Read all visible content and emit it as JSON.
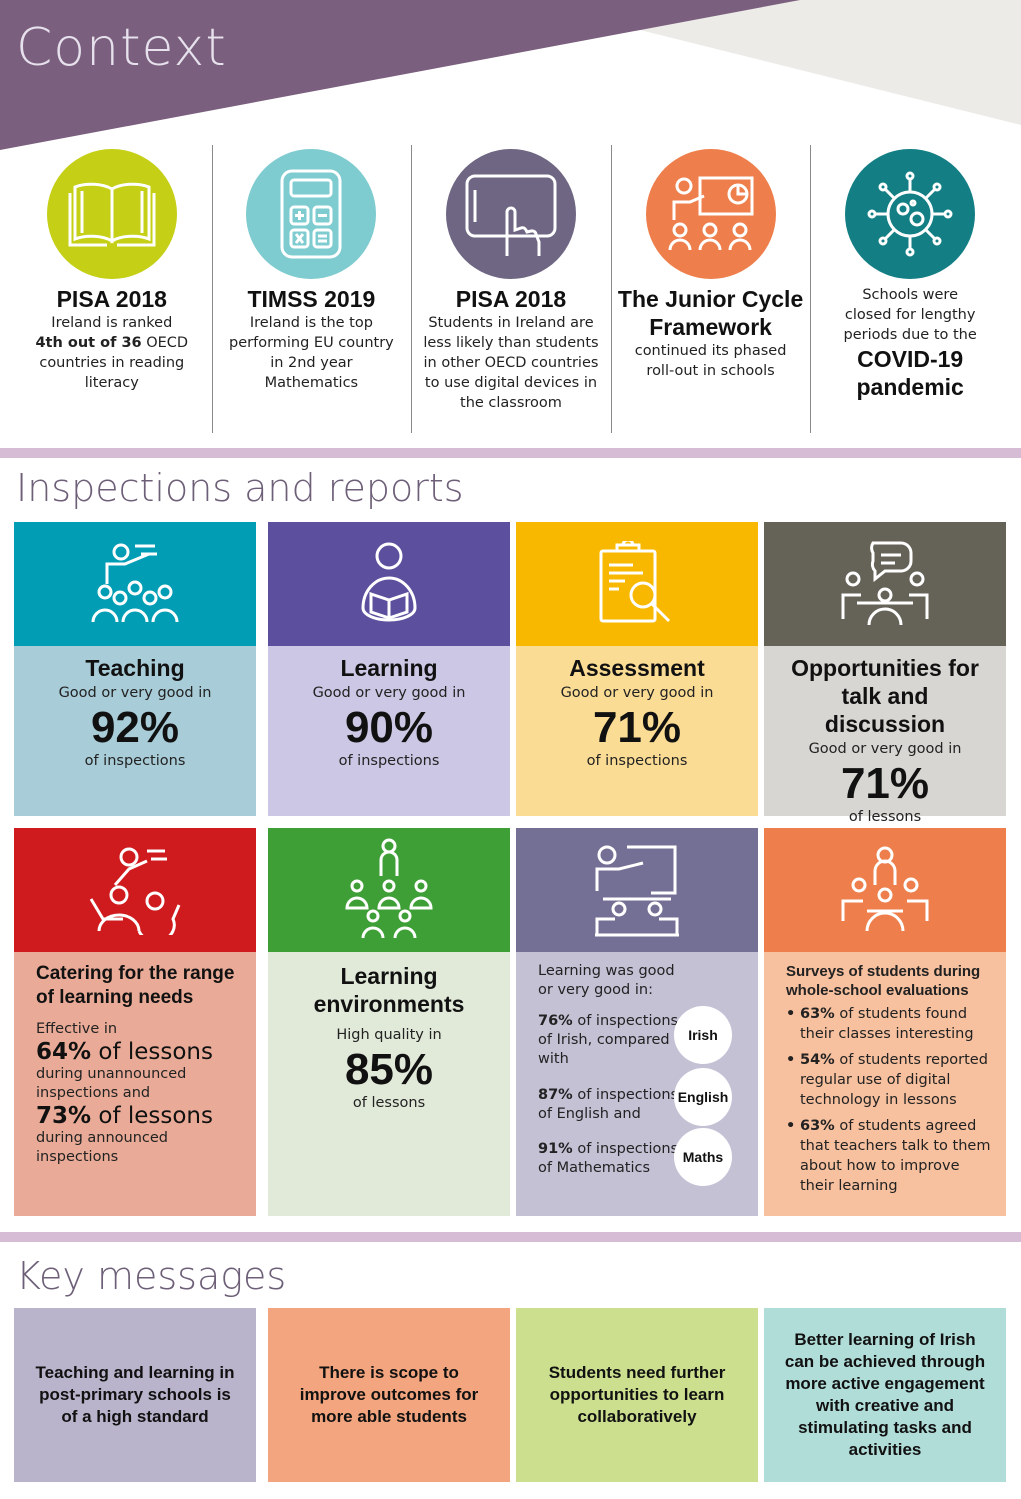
{
  "header": {
    "title": "Context"
  },
  "context": [
    {
      "title": "PISA 2018",
      "lines": [
        "Ireland is ranked"
      ],
      "bold": "4th out of 36",
      "after": " OECD countries in reading literacy",
      "icon": "book-icon",
      "color": "#c4cf16"
    },
    {
      "title": "TIMSS 2019",
      "text": "Ireland is the top performing EU country in 2nd year Mathematics",
      "icon": "calculator-icon",
      "color": "#7ecbd0"
    },
    {
      "title": "PISA 2018",
      "text": "Students in Ireland are less likely than students in other OECD countries to use digital devices in the classroom",
      "icon": "tablet-touch-icon",
      "color": "#6e6682"
    },
    {
      "title": "The Junior Cycle Framework",
      "text": "continued its phased roll-out in schools",
      "icon": "presentation-icon",
      "color": "#ee7f4c"
    },
    {
      "pre": "Schools were closed for lengthy periods due to the",
      "title": "COVID-19 pandemic",
      "icon": "virus-icon",
      "color": "#137f84"
    }
  ],
  "inspections": {
    "title": "Inspections and reports",
    "row1": [
      {
        "heading": "Teaching",
        "sub": "Good or very good in",
        "value": "92%",
        "unit": "of inspections",
        "icon": "teacher-class-icon",
        "top": "#009db5",
        "bottom": "#a8ccd8"
      },
      {
        "heading": "Learning",
        "sub": "Good or very good in",
        "value": "90%",
        "unit": "of inspections",
        "icon": "student-reading-icon",
        "top": "#5c4f9e",
        "bottom": "#cbc7e4"
      },
      {
        "heading": "Assessment",
        "sub": "Good or very good in",
        "value": "71%",
        "unit": "of inspections",
        "icon": "clipboard-search-icon",
        "top": "#f9b800",
        "bottom": "#fbdc94"
      },
      {
        "heading": "Opportunities for talk and discussion",
        "sub": "Good or very good in",
        "value": "71%",
        "unit": "of lessons",
        "icon": "group-discussion-icon",
        "top": "#656358",
        "bottom": "#d7d6d2"
      }
    ],
    "catering": {
      "heading": "Catering for the range of learning needs",
      "intro": "Effective in",
      "v1": "64%",
      "v1_unit": " of lessons",
      "v1_note": "during unannounced inspections and",
      "v2": "73%",
      "v2_unit": " of lessons",
      "v2_note": "during announced inspections",
      "icon": "teacher-students-icon",
      "top": "#cf1a1e",
      "bottom": "#e9ab97"
    },
    "environments": {
      "heading": "Learning environments",
      "sub": "High quality in",
      "value": "85%",
      "unit": "of lessons",
      "icon": "class-group-icon",
      "top": "#3f9f37",
      "bottom": "#e1e9d9"
    },
    "subjects": {
      "intro": "Learning was good or very good in:",
      "items": [
        {
          "pct": "76%",
          "text": " of inspections of Irish, compared with",
          "label": "Irish"
        },
        {
          "pct": "87%",
          "text": " of inspections of English and",
          "label": "English"
        },
        {
          "pct": "91%",
          "text": " of inspections of Mathematics",
          "label": "Maths"
        }
      ],
      "icon": "teacher-board-icon",
      "top": "#747095",
      "bottom": "#c4c1d5"
    },
    "surveys": {
      "heading": "Surveys of students during whole-school evaluations",
      "items": [
        {
          "pct": "63%",
          "text": " of students found their classes interesting"
        },
        {
          "pct": "54%",
          "text": " of students reported regular use of digital technology in lessons"
        },
        {
          "pct": "63%",
          "text": " of students agreed that teachers talk to them about how to improve their learning"
        }
      ],
      "icon": "student-group-icon",
      "top": "#ee7f4c",
      "bottom": "#f7c09e"
    }
  },
  "key": {
    "title": "Key messages",
    "items": [
      {
        "text": "Teaching and learning in post-primary schools is of a high standard",
        "color": "#b9b4cb"
      },
      {
        "text": "There is scope to improve outcomes for more able students",
        "color": "#f2a57e"
      },
      {
        "text": "Students need further opportunities to learn collaboratively",
        "color": "#cbdf8f"
      },
      {
        "text": "Better learning of Irish can be achieved through more active engagement with creative and stimulating tasks and activities",
        "color": "#b1ddd9"
      }
    ]
  }
}
